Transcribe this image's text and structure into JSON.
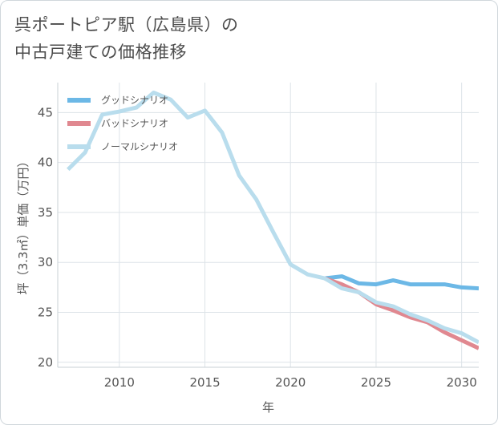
{
  "title": {
    "line1": "呉ポートピア駅（広島県）の",
    "line2": "中古戸建ての価格推移"
  },
  "chart_data": {
    "type": "line",
    "xlabel": "年",
    "ylabel": "坪（3.3㎡）単価（万円）",
    "xlim": [
      2006.4,
      2031
    ],
    "ylim": [
      19.5,
      48
    ],
    "x_ticks": [
      2010,
      2015,
      2020,
      2025,
      2030
    ],
    "y_ticks": [
      20,
      25,
      30,
      35,
      40,
      45
    ],
    "grid": true,
    "legend_position": "top-left",
    "series": [
      {
        "name": "グッドシナリオ",
        "color": "#6cb8e6",
        "x": [
          2022,
          2023,
          2024,
          2025,
          2026,
          2027,
          2028,
          2029,
          2030,
          2031
        ],
        "values": [
          28.4,
          28.6,
          27.9,
          27.8,
          28.2,
          27.8,
          27.8,
          27.8,
          27.5,
          27.4
        ]
      },
      {
        "name": "バッドシナリオ",
        "color": "#e08890",
        "x": [
          2022,
          2023,
          2024,
          2025,
          2026,
          2027,
          2028,
          2029,
          2030,
          2031
        ],
        "values": [
          28.4,
          27.8,
          27.0,
          25.8,
          25.2,
          24.5,
          24.0,
          23.0,
          22.2,
          21.4
        ]
      },
      {
        "name": "ノーマルシナリオ",
        "color": "#b9dded",
        "x": [
          2007,
          2008,
          2009,
          2010,
          2011,
          2012,
          2013,
          2014,
          2015,
          2016,
          2017,
          2018,
          2019,
          2020,
          2021,
          2022,
          2023,
          2024,
          2025,
          2026,
          2027,
          2028,
          2029,
          2030,
          2031
        ],
        "values": [
          39.3,
          41.0,
          44.8,
          45.1,
          45.5,
          47.0,
          46.3,
          44.5,
          45.2,
          43.0,
          38.7,
          36.3,
          33.0,
          29.8,
          28.8,
          28.4,
          27.4,
          27.0,
          26.0,
          25.6,
          24.8,
          24.2,
          23.4,
          22.9,
          22.0
        ]
      }
    ]
  }
}
